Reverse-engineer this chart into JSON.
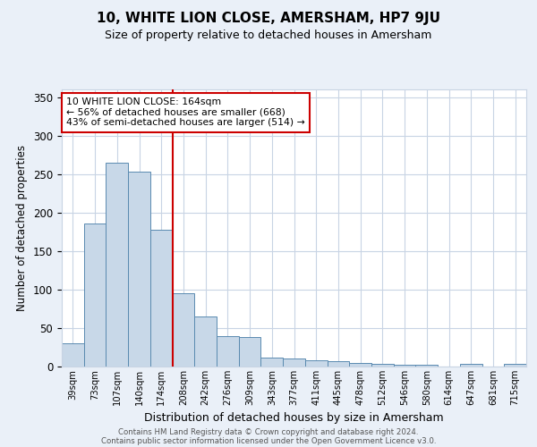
{
  "title": "10, WHITE LION CLOSE, AMERSHAM, HP7 9JU",
  "subtitle": "Size of property relative to detached houses in Amersham",
  "xlabel": "Distribution of detached houses by size in Amersham",
  "ylabel": "Number of detached properties",
  "footer1": "Contains HM Land Registry data © Crown copyright and database right 2024.",
  "footer2": "Contains public sector information licensed under the Open Government Licence v3.0.",
  "categories": [
    "39sqm",
    "73sqm",
    "107sqm",
    "140sqm",
    "174sqm",
    "208sqm",
    "242sqm",
    "276sqm",
    "309sqm",
    "343sqm",
    "377sqm",
    "411sqm",
    "445sqm",
    "478sqm",
    "512sqm",
    "546sqm",
    "580sqm",
    "614sqm",
    "647sqm",
    "681sqm",
    "715sqm"
  ],
  "values": [
    30,
    186,
    265,
    253,
    178,
    95,
    65,
    39,
    38,
    12,
    10,
    8,
    7,
    5,
    3,
    2,
    2,
    0,
    3,
    0,
    3
  ],
  "bar_color": "#c8d8e8",
  "bar_edge_color": "#5a8ab0",
  "red_line_index": 4.5,
  "red_line_color": "#cc0000",
  "annotation_text": "10 WHITE LION CLOSE: 164sqm\n← 56% of detached houses are smaller (668)\n43% of semi-detached houses are larger (514) →",
  "annotation_box_color": "white",
  "annotation_box_edge_color": "#cc0000",
  "ylim": [
    0,
    360
  ],
  "yticks": [
    0,
    50,
    100,
    150,
    200,
    250,
    300,
    350
  ],
  "bg_color": "#eaf0f8",
  "plot_bg_color": "white",
  "grid_color": "#c8d4e4"
}
